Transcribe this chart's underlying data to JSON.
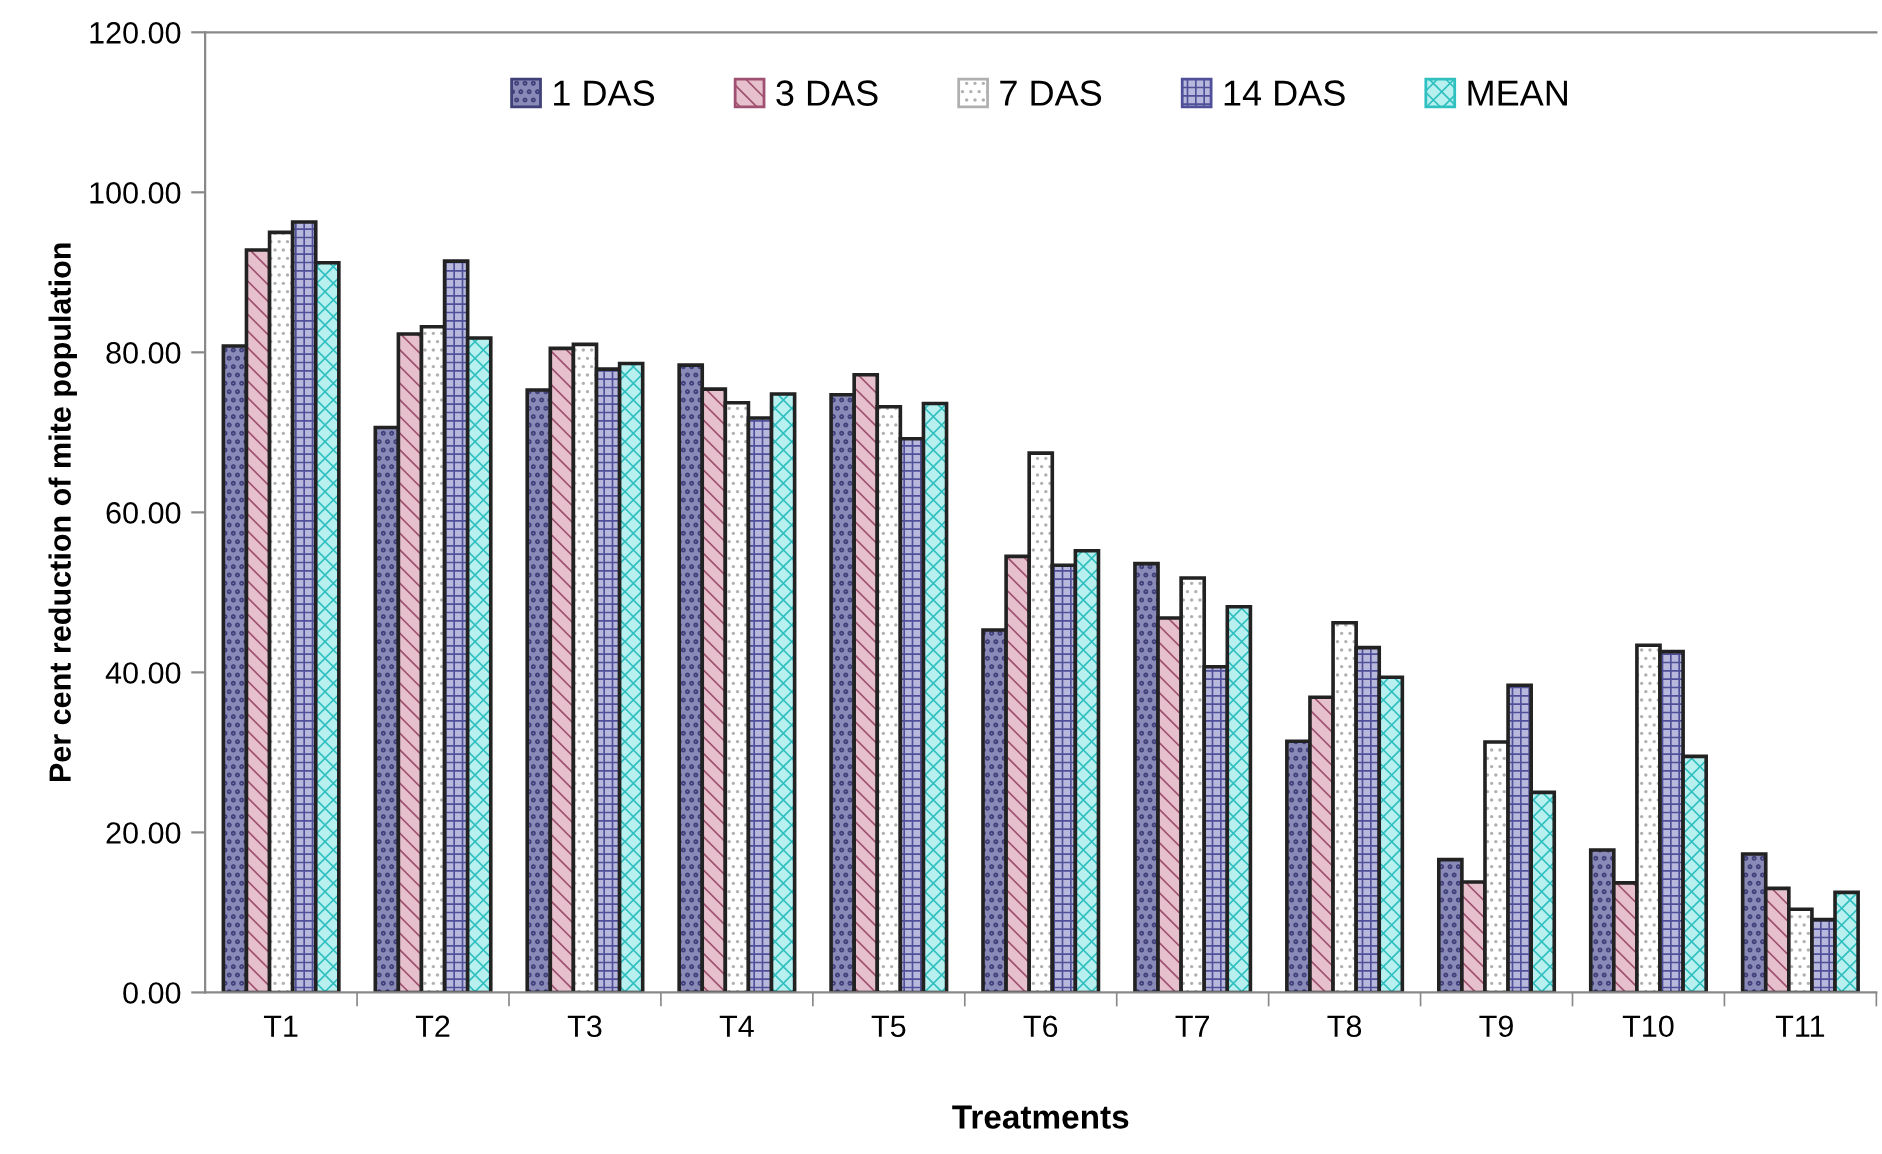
{
  "chart_data": {
    "type": "bar",
    "xlabel": "Treatments",
    "ylabel": "Per cent reduction of mite population",
    "categories": [
      "T1",
      "T2",
      "T3",
      "T4",
      "T5",
      "T6",
      "T7",
      "T8",
      "T9",
      "T10",
      "T11"
    ],
    "series": [
      {
        "name": "1 DAS",
        "color": "#8a8ab8",
        "values": [
          80.8,
          70.6,
          75.3,
          78.4,
          74.7,
          45.3,
          53.6,
          31.4,
          16.6,
          17.8,
          17.3
        ]
      },
      {
        "name": "3 DAS",
        "color": "#e6c0cc",
        "values": [
          92.8,
          82.3,
          80.5,
          75.4,
          77.2,
          54.5,
          46.8,
          36.9,
          13.8,
          13.7,
          13.0
        ]
      },
      {
        "name": "7 DAS",
        "color": "#ffffff",
        "values": [
          95.0,
          83.2,
          81.0,
          73.7,
          73.2,
          67.4,
          51.8,
          46.2,
          31.3,
          43.4,
          10.4
        ]
      },
      {
        "name": "14 DAS",
        "color": "#b8b8dc",
        "values": [
          96.3,
          91.4,
          77.9,
          71.8,
          69.2,
          53.4,
          40.7,
          43.1,
          38.4,
          42.6,
          9.1
        ]
      },
      {
        "name": "MEAN",
        "color": "#b8f0f0",
        "values": [
          91.2,
          81.8,
          78.6,
          74.8,
          73.6,
          55.2,
          48.2,
          39.4,
          25.0,
          29.5,
          12.5
        ]
      }
    ],
    "ylim": [
      0,
      120
    ],
    "yticks": [
      {
        "value": 0,
        "label": "0.00"
      },
      {
        "value": 20,
        "label": "20.00"
      },
      {
        "value": 40,
        "label": "40.00"
      },
      {
        "value": 60,
        "label": "60.00"
      },
      {
        "value": 80,
        "label": "80.00"
      },
      {
        "value": 100,
        "label": "100.00"
      },
      {
        "value": 120,
        "label": "120.00"
      }
    ],
    "grid": false,
    "legend": "top"
  }
}
